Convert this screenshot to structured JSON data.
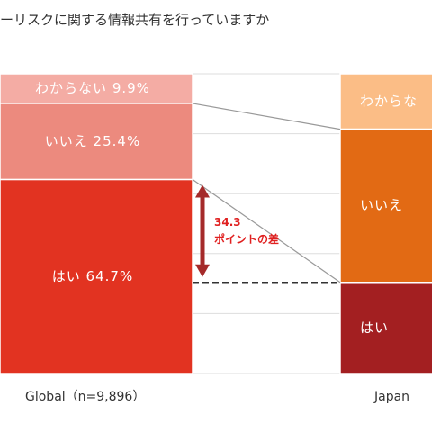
{
  "chart_data": {
    "type": "bar",
    "title": "ーリスクに関する情報共有を行っていますか",
    "colors": {
      "global": {
        "yes": "#e23321",
        "no": "#ec8a7e",
        "unknown": "#f4aca4"
      },
      "japan": {
        "yes": "#a31f21",
        "no": "#e26a14",
        "unknown": "#fbbd86"
      },
      "gridline": "#dddddd",
      "connector": "#999999",
      "arrow": "#a52a2a",
      "label_text": "#ffffff"
    },
    "categories": [
      "Global（n=9,896）",
      "Japan"
    ],
    "series": [
      {
        "name": "Global",
        "segments": [
          {
            "key": "unknown",
            "label": "わからない",
            "value": 9.9,
            "value_text": "9.9%"
          },
          {
            "key": "no",
            "label": "いいえ",
            "value": 25.4,
            "value_text": "25.4%"
          },
          {
            "key": "yes",
            "label": "はい",
            "value": 64.7,
            "value_text": "64.7%"
          }
        ]
      },
      {
        "name": "Japan",
        "segments": [
          {
            "key": "unknown",
            "label": "わからな",
            "value": 18.5
          },
          {
            "key": "no",
            "label": "いいえ",
            "value": 51.1
          },
          {
            "key": "yes",
            "label": "はい",
            "value": 30.4
          }
        ]
      }
    ],
    "annotation": {
      "value": "34.3",
      "text": "ポイントの差"
    },
    "ylim": [
      0,
      100
    ],
    "grid": true
  }
}
